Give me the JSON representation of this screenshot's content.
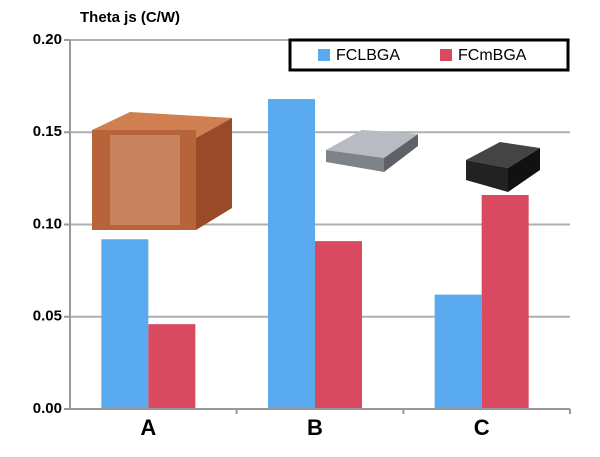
{
  "chart_data": {
    "type": "bar",
    "y_label": "Theta js (C/W)",
    "categories": [
      "A",
      "B",
      "C"
    ],
    "series": [
      {
        "name": "FCLBGA",
        "color": "#5aaaf0",
        "values": [
          0.092,
          0.168,
          0.062
        ]
      },
      {
        "name": "FCmBGA",
        "color": "#d94a60",
        "values": [
          0.046,
          0.091,
          0.116
        ]
      }
    ],
    "ylim": [
      0,
      0.2
    ],
    "yticks": [
      {
        "value": 0,
        "label": "0.00"
      },
      {
        "value": 0.05,
        "label": "0.05"
      },
      {
        "value": 0.1,
        "label": "0.10"
      },
      {
        "value": 0.15,
        "label": "0.15"
      },
      {
        "value": 0.2,
        "label": "0.20"
      }
    ],
    "grid": true,
    "legend": "upper right"
  }
}
